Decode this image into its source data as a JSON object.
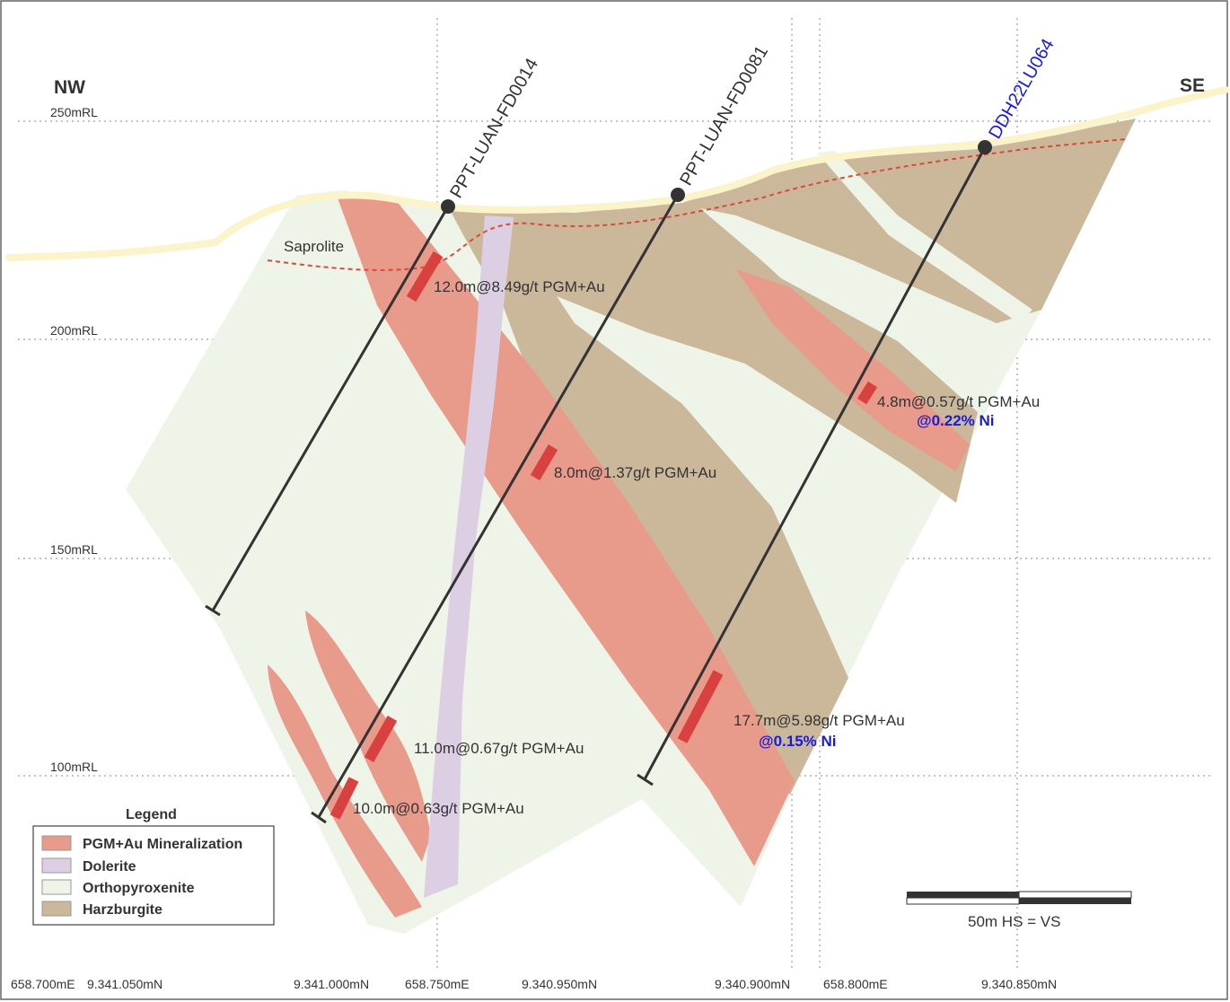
{
  "direction": {
    "left": "NW",
    "right": "SE"
  },
  "rl_labels": [
    "250mRL",
    "200mRL",
    "150mRL",
    "100mRL"
  ],
  "bottom_labels": [
    "658.700mE",
    "9.341.050mN",
    "9.341.000mN",
    "658.750mE",
    "9.340.950mN",
    "9.340.900mN",
    "658.800mE",
    "9.340.850mN"
  ],
  "drillholes": [
    {
      "name": "PPT-LUAN-FD0014",
      "color": "#333333"
    },
    {
      "name": "PPT-LUAN-FD0081",
      "color": "#333333"
    },
    {
      "name": "DDH22LU064",
      "color": "#1a1ad9"
    }
  ],
  "saprolite_label": "Saprolite",
  "intercepts": [
    {
      "text": "12.0m@8.49g/t PGM+Au"
    },
    {
      "text": "4.8m@0.57g/t PGM+Au",
      "ni": "@0.22% Ni"
    },
    {
      "text": "8.0m@1.37g/t PGM+Au"
    },
    {
      "text": "17.7m@5.98g/t PGM+Au",
      "ni": "@0.15% Ni"
    },
    {
      "text": "11.0m@0.67g/t PGM+Au"
    },
    {
      "text": "10.0m@0.63g/t PGM+Au"
    }
  ],
  "legend": {
    "title": "Legend",
    "items": [
      {
        "label": "PGM+Au Mineralization",
        "color": "#e89a8b"
      },
      {
        "label": "Dolerite",
        "color": "#dccfe4"
      },
      {
        "label": "Orthopyroxenite",
        "color": "#eef5e8"
      },
      {
        "label": "Harzburgite",
        "color": "#cbb89b"
      }
    ]
  },
  "scale": {
    "label": "50m  HS = VS"
  },
  "colors": {
    "mineralization": "#e89a8b",
    "dolerite": "#dccfe4",
    "orthopyroxenite": "#eef5e8",
    "harzburgite": "#cbb89b",
    "surface": "#fbf3c9",
    "intercept": "#d94040",
    "saprolite_line": "#d94a3a",
    "ni_text": "#1a1ad9"
  }
}
